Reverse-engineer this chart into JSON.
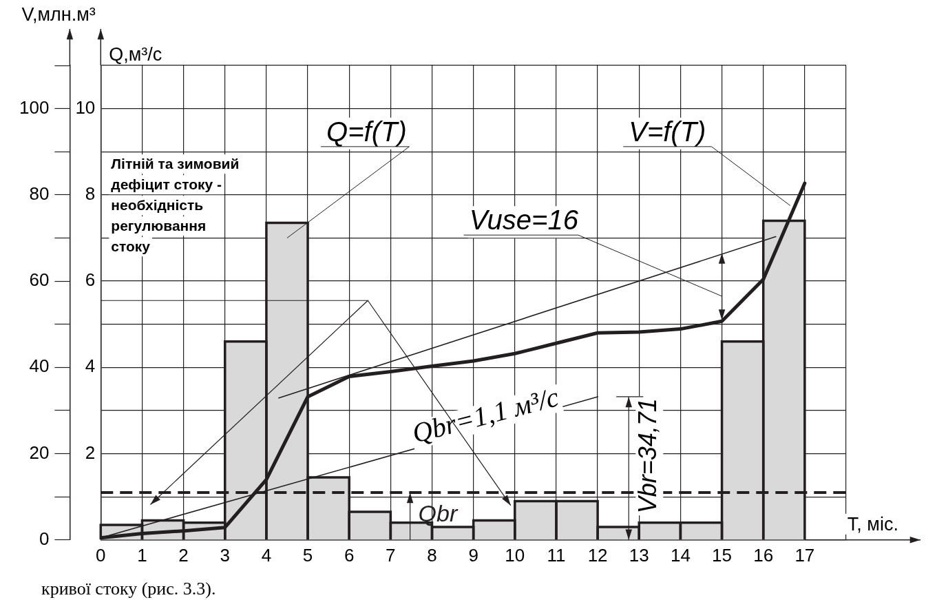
{
  "chart_data": {
    "type": "histogram",
    "xlabel": "T, міс.",
    "ylabel": "Q,м³/с",
    "y2label": "V,млн.м³",
    "xlim": [
      0,
      18
    ],
    "xticks": [
      0,
      1,
      2,
      3,
      4,
      5,
      6,
      7,
      8,
      9,
      10,
      11,
      12,
      13,
      14,
      15,
      16,
      17,
      {
        "value": 18,
        "label": null
      }
    ],
    "ylim": [
      0,
      11
    ],
    "yticks": [
      {
        "value": 0,
        "label": null
      },
      {
        "value": 1,
        "label": null
      },
      2,
      {
        "value": 3,
        "label": null
      },
      4,
      {
        "value": 5,
        "label": null
      },
      6,
      {
        "value": 7,
        "label": null
      },
      8,
      {
        "value": 9,
        "label": null
      },
      10,
      {
        "value": 11,
        "label": null
      }
    ],
    "y2lim": [
      0,
      110
    ],
    "y2ticks": [
      0,
      {
        "value": 10,
        "label": null
      },
      20,
      {
        "value": 30,
        "label": null
      },
      40,
      {
        "value": 50,
        "label": null
      },
      60,
      {
        "value": 70,
        "label": null
      },
      80,
      {
        "value": 90,
        "label": null
      },
      100,
      {
        "value": 110,
        "label": null
      }
    ],
    "grid": true,
    "marker": "none",
    "series": [
      {
        "type": "histogram",
        "color": "#d9d9d9",
        "bins": [
          0,
          1,
          2,
          3,
          4,
          5,
          6,
          7,
          8,
          9,
          10,
          11,
          12,
          13,
          14,
          15,
          16,
          17
        ],
        "values": [
          0.35,
          0.45,
          0.4,
          4.6,
          7.35,
          1.45,
          0.65,
          0.4,
          0.3,
          0.45,
          0.9,
          0.9,
          0.3,
          0.4,
          0.4,
          4.6,
          7.4
        ]
      },
      {
        "type": "line",
        "axis": "y2",
        "color": "#231f20",
        "x": [
          0,
          1,
          2,
          3,
          4,
          5,
          6,
          7,
          8,
          9,
          10,
          11,
          12,
          13,
          14,
          15,
          16,
          17
        ],
        "values": [
          0.5,
          1.5,
          2.1,
          2.9,
          14,
          33.2,
          37.9,
          39,
          40.3,
          41.5,
          43.2,
          45.6,
          48,
          48.2,
          48.9,
          50.7,
          60.4,
          82.7
        ]
      },
      {
        "type": "line",
        "axis": "y2",
        "color": "#231f20",
        "x": [
          0,
          12
        ],
        "values": [
          0.5,
          33.2
        ]
      },
      {
        "type": "line",
        "axis": "y2",
        "color": "#231f20",
        "x": [
          4.3,
          16.3
        ],
        "values": [
          32.9,
          70.3
        ]
      }
    ],
    "ref_lines": [
      {
        "axis": "y",
        "value": 1.1,
        "label": "Qbr",
        "line_style": "dashed",
        "color": "#231f20"
      }
    ],
    "annotations": [
      "Літній та зимовий дефіцит стоку - необхідність регулювання стоку",
      "Q=f(T)",
      {
        "text": "V=f(T)",
        "x": 16.65,
        "y": 7.75
      },
      "Vuse=16",
      "Qbr=1,1 м³/с",
      "Vbr=34,71",
      "кривої стоку (рис. 3.3)."
    ]
  }
}
